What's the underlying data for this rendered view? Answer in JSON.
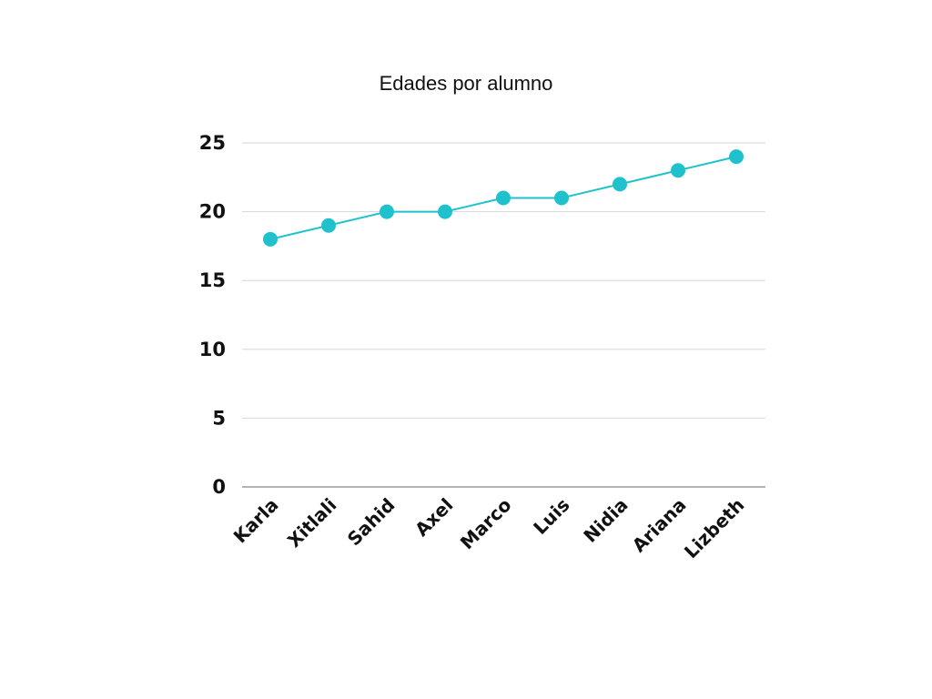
{
  "chart_data": {
    "type": "line",
    "title": "Edades por alumno",
    "xlabel": "",
    "ylabel": "",
    "categories": [
      "Karla",
      "Xitlali",
      "Sahid",
      "Axel",
      "Marco",
      "Luis",
      "Nidia",
      "Ariana",
      "Lizbeth"
    ],
    "series": [
      {
        "values": [
          18,
          19,
          20,
          20,
          21,
          21,
          22,
          23,
          24
        ]
      }
    ],
    "ylim": [
      0,
      25
    ],
    "yticks": [
      0,
      5,
      10,
      15,
      20,
      25
    ],
    "grid": true,
    "legend": "none",
    "colors": {
      "series": "#1fc2cc",
      "grid": "#d6d6d6",
      "axis": "#9a9a9a",
      "text": "#111111"
    }
  }
}
